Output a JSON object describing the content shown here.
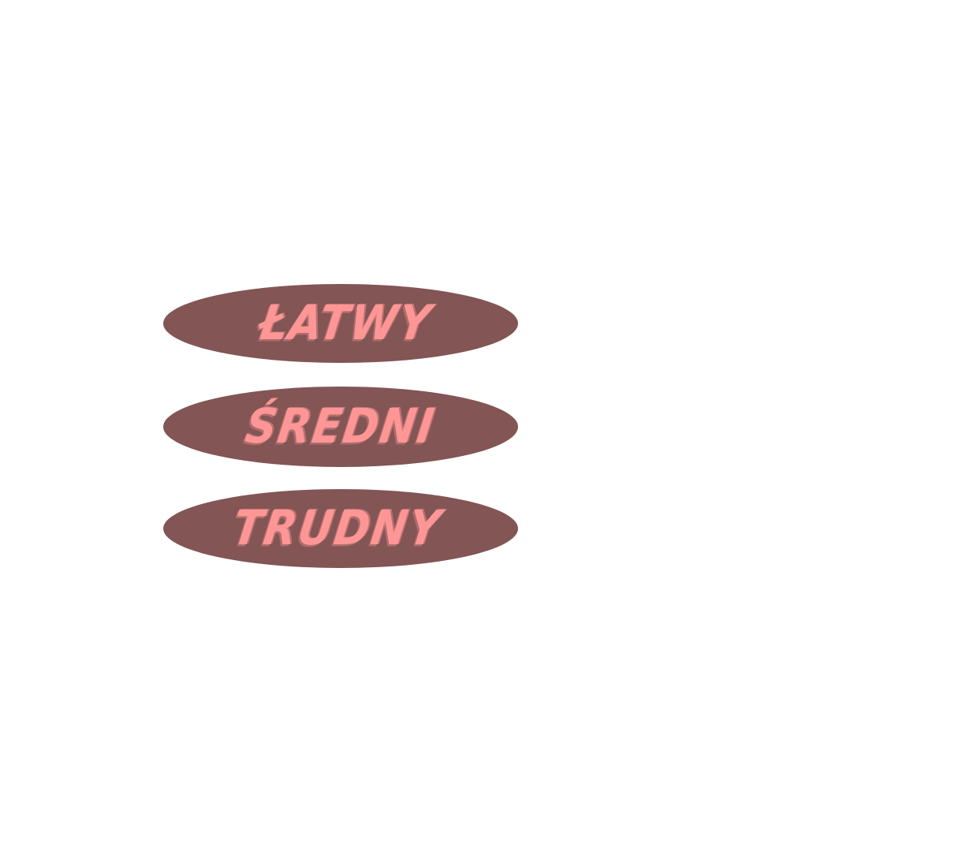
{
  "colors": {
    "background": "#ffffff",
    "button_fill": "#835555",
    "label_text": "#ff9696"
  },
  "menu": {
    "buttons": [
      {
        "id": "easy",
        "label": "ŁATWY"
      },
      {
        "id": "medium",
        "label": "ŚREDNI"
      },
      {
        "id": "hard",
        "label": "TRUDNY"
      }
    ]
  }
}
